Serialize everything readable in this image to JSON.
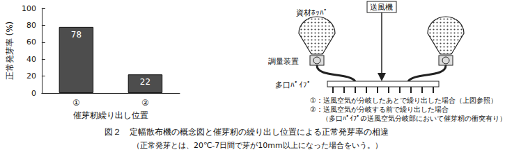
{
  "chart_data": {
    "type": "bar",
    "categories": [
      "①",
      "②"
    ],
    "values": [
      78,
      22
    ],
    "color": "#4d4d4d",
    "ylim": [
      0,
      100
    ],
    "yticks": [
      0,
      20,
      40,
      60,
      80,
      100
    ],
    "grid": false,
    "data_labels": true,
    "y_label": "正常発芽率 (%)",
    "x_label": "催芽籾繰り出し位置"
  },
  "diagram": {
    "labels": {
      "hopper": "資材ﾎｯﾊﾟ",
      "blower": "送風機",
      "meter": "調量装置",
      "pipe": "多口ﾊﾟｲﾌﾟ"
    },
    "notes": [
      "①：送風空気が分岐したあとで繰り出した場合（上図参照）",
      "②：送風空気が分岐する前で繰り出した場合",
      "（多口ﾊﾟｲﾌﾟの送風空気分岐部において催芽籾の衝突有り）"
    ]
  },
  "caption": [
    "図２　定幅散布機の概念図と催芽籾の繰り出し位置による正常発芽率の相違",
    "（正常発芽とは、20℃-7日間で芽が10mm以上になった場合をいう。）"
  ]
}
